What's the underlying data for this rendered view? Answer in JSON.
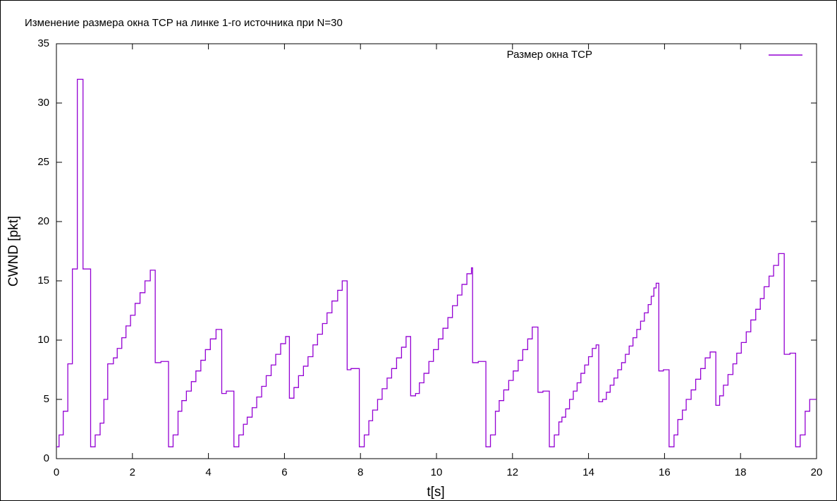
{
  "chart_data": {
    "type": "line",
    "line_style": "steps",
    "title": "Изменение размера окна TCP на линке 1-го источника при N=30",
    "x_label": "t[s]",
    "y_label": "CWND [pkt]",
    "xlim": [
      0,
      20
    ],
    "xticks": [
      0,
      2,
      4,
      6,
      8,
      10,
      12,
      14,
      16,
      18,
      20
    ],
    "ylim": [
      0,
      35
    ],
    "yticks": [
      0,
      5,
      10,
      15,
      20,
      25,
      30,
      35
    ],
    "grid": false,
    "legend": "top-right",
    "series": [
      {
        "name": "Размер окна TCP",
        "color": "#9400d3",
        "x": [
          0,
          0.07,
          0.18,
          0.3,
          0.42,
          0.55,
          0.7,
          0.9,
          1.02,
          1.15,
          1.25,
          1.35,
          1.5,
          1.6,
          1.72,
          1.83,
          1.95,
          2.07,
          2.2,
          2.33,
          2.47,
          2.6,
          2.75,
          2.95,
          3.07,
          3.2,
          3.3,
          3.42,
          3.55,
          3.67,
          3.8,
          3.92,
          4.05,
          4.2,
          4.35,
          4.47,
          4.67,
          4.8,
          4.92,
          5.02,
          5.15,
          5.27,
          5.4,
          5.52,
          5.65,
          5.77,
          5.9,
          6.03,
          6.13,
          6.25,
          6.37,
          6.5,
          6.62,
          6.75,
          6.87,
          7.0,
          7.12,
          7.25,
          7.4,
          7.52,
          7.65,
          7.75,
          7.97,
          8.1,
          8.22,
          8.32,
          8.45,
          8.57,
          8.7,
          8.82,
          8.95,
          9.08,
          9.2,
          9.32,
          9.45,
          9.55,
          9.67,
          9.8,
          9.92,
          10.05,
          10.17,
          10.3,
          10.42,
          10.55,
          10.67,
          10.8,
          10.92,
          10.95,
          11.1,
          11.3,
          11.42,
          11.55,
          11.65,
          11.77,
          11.9,
          12.02,
          12.15,
          12.27,
          12.4,
          12.52,
          12.67,
          12.8,
          12.97,
          13.1,
          13.22,
          13.3,
          13.4,
          13.5,
          13.6,
          13.7,
          13.8,
          13.9,
          14.0,
          14.1,
          14.2,
          14.27,
          14.37,
          14.47,
          14.57,
          14.67,
          14.77,
          14.87,
          14.97,
          15.07,
          15.17,
          15.27,
          15.37,
          15.47,
          15.57,
          15.65,
          15.72,
          15.78,
          15.85,
          15.97,
          16.12,
          16.25,
          16.35,
          16.47,
          16.57,
          16.7,
          16.82,
          16.95,
          17.07,
          17.2,
          17.35,
          17.45,
          17.55,
          17.67,
          17.8,
          17.9,
          18.02,
          18.15,
          18.27,
          18.4,
          18.52,
          18.62,
          18.75,
          18.87,
          19.0,
          19.15,
          19.3,
          19.45,
          19.57,
          19.7,
          19.82
        ],
        "values": [
          1,
          2,
          4,
          8,
          16,
          32,
          16,
          1,
          2,
          3,
          5,
          8,
          8.5,
          9.3,
          10.2,
          11.2,
          12.1,
          13.1,
          14,
          15,
          15.9,
          8.1,
          8.2,
          1,
          2,
          4,
          4.9,
          5.7,
          6.5,
          7.4,
          8.3,
          9.2,
          10.1,
          10.9,
          5.5,
          5.7,
          1,
          2,
          2.9,
          3.5,
          4.3,
          5.2,
          6.1,
          7.0,
          7.9,
          8.8,
          9.7,
          10.3,
          5.1,
          6.0,
          7.0,
          7.8,
          8.6,
          9.6,
          10.5,
          11.4,
          12.3,
          13.3,
          14.2,
          15.0,
          7.5,
          7.6,
          1,
          2,
          3.2,
          4.1,
          5.0,
          5.9,
          6.8,
          7.6,
          8.5,
          9.4,
          10.3,
          5.3,
          5.5,
          6.4,
          7.2,
          8.2,
          9.2,
          10.1,
          11.0,
          11.9,
          12.9,
          13.8,
          14.7,
          15.6,
          16.1,
          8.1,
          8.2,
          1,
          2,
          4,
          4.9,
          5.8,
          6.6,
          7.4,
          8.3,
          9.2,
          10.1,
          11.1,
          5.6,
          5.7,
          1,
          2,
          3.1,
          3.5,
          4.2,
          5.0,
          5.7,
          6.4,
          7.2,
          7.9,
          8.6,
          9.3,
          9.6,
          4.8,
          5.0,
          5.6,
          6.2,
          6.8,
          7.5,
          8.1,
          8.8,
          9.5,
          10.2,
          10.9,
          11.6,
          12.3,
          13.0,
          13.7,
          14.4,
          14.8,
          7.4,
          7.5,
          1,
          2,
          3.3,
          4.1,
          5.0,
          5.8,
          6.7,
          7.6,
          8.5,
          9.0,
          4.5,
          5.3,
          6.2,
          7.1,
          8.0,
          8.9,
          9.8,
          10.7,
          11.7,
          12.6,
          13.5,
          14.5,
          15.4,
          16.3,
          17.3,
          8.8,
          8.9,
          1,
          2,
          4,
          5
        ]
      }
    ]
  }
}
